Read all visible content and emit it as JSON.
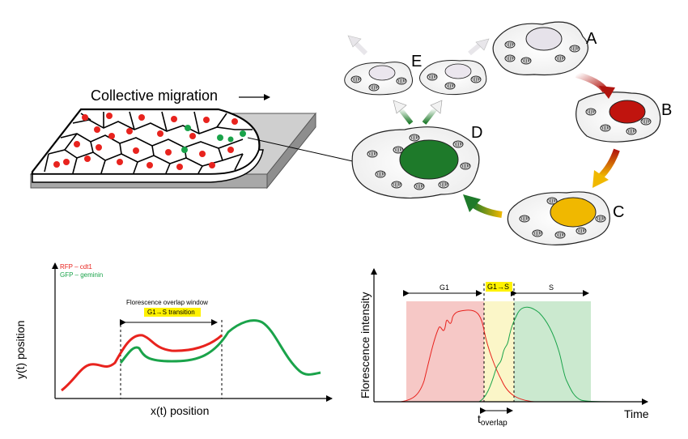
{
  "top": {
    "title": "Collective migration",
    "cell_labels": [
      "A",
      "B",
      "C",
      "D",
      "E"
    ]
  },
  "colors": {
    "rfp": "#e8231e",
    "gfp": "#1aa34a",
    "dark_green": "#1e7a2a",
    "dark_red": "#c0140e",
    "yellow": "#f0b800",
    "g1_band": "#f6c8c6",
    "overlap_band": "#fbf6c8",
    "s_band": "#cbe9cf",
    "highlight": "#fff200"
  },
  "left_plot": {
    "legend_rfp": "RFP – cdt1",
    "legend_gfp": "GFP – geminin",
    "window_label": "Florescence overlap window",
    "transition_label": "G1→S transition",
    "xlabel": "x(t) position",
    "ylabel": "y(t) position"
  },
  "right_plot": {
    "phase_g1": "G1",
    "phase_g1s": "G1→S",
    "phase_s": "S",
    "ylabel": "Florescence intensity",
    "xlabel": "Time",
    "overlap_label_main": "t",
    "overlap_label_sub": "overlap"
  }
}
